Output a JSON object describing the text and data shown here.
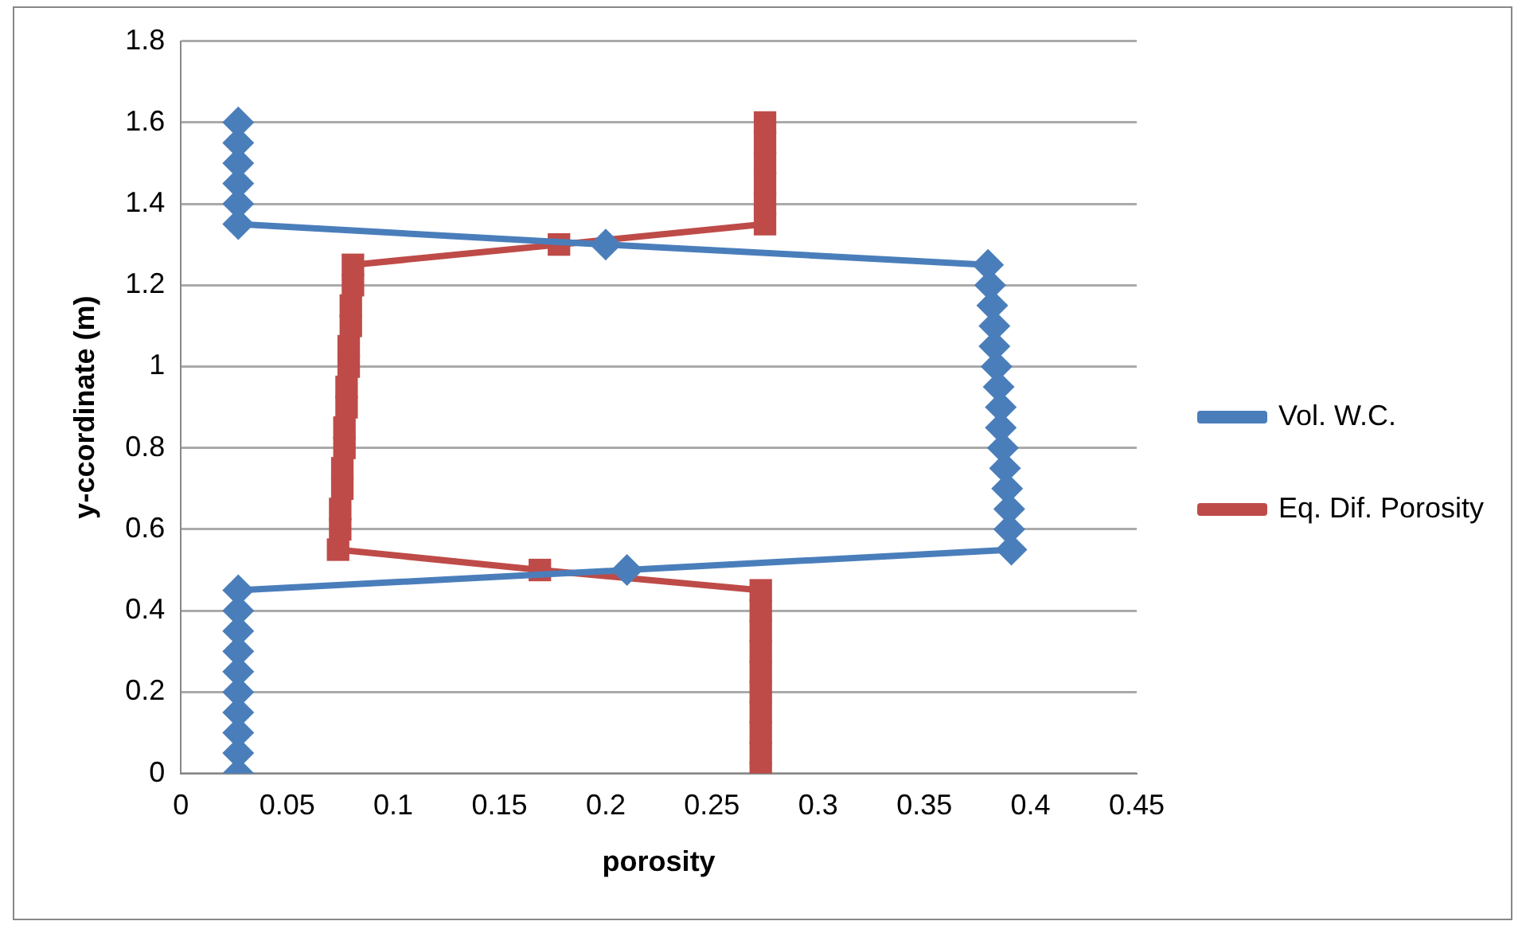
{
  "chart_data": {
    "type": "line",
    "xlabel": "porosity",
    "ylabel": "y-ccordinate (m)",
    "xlim": [
      0,
      0.45
    ],
    "xticks": [
      0,
      0.05,
      0.1,
      0.15,
      0.2,
      0.25,
      0.3,
      0.35,
      0.4,
      0.45
    ],
    "ylim": [
      0,
      1.8
    ],
    "yticks": [
      0,
      0.2,
      0.4,
      0.6,
      0.8,
      1,
      1.2,
      1.4,
      1.6,
      1.8
    ],
    "grid": "y",
    "legend": "right",
    "line_style": "solid",
    "series": [
      {
        "name": "Vol. W.C.",
        "color": "#4a7ebb",
        "marker": "diamond",
        "x": [
          0.027,
          0.027,
          0.027,
          0.027,
          0.027,
          0.027,
          0.027,
          0.027,
          0.027,
          0.027,
          0.21,
          0.391,
          0.39,
          0.39,
          0.389,
          0.388,
          0.387,
          0.386,
          0.386,
          0.385,
          0.384,
          0.383,
          0.383,
          0.382,
          0.381,
          0.38,
          0.2,
          0.027,
          0.027,
          0.027,
          0.027,
          0.027,
          0.027
        ],
        "values": [
          0,
          0.05,
          0.1,
          0.15,
          0.2,
          0.25,
          0.3,
          0.35,
          0.4,
          0.45,
          0.5,
          0.55,
          0.6,
          0.65,
          0.7,
          0.75,
          0.8,
          0.85,
          0.9,
          0.95,
          1,
          1.05,
          1.1,
          1.15,
          1.2,
          1.25,
          1.3,
          1.35,
          1.4,
          1.45,
          1.5,
          1.55,
          1.6
        ]
      },
      {
        "name": "Eq. Dif. Porosity",
        "color": "#be4b48",
        "marker": "square",
        "x": [
          0.273,
          0.273,
          0.273,
          0.273,
          0.273,
          0.273,
          0.273,
          0.273,
          0.273,
          0.273,
          0.169,
          0.074,
          0.075,
          0.075,
          0.076,
          0.076,
          0.077,
          0.077,
          0.078,
          0.078,
          0.079,
          0.079,
          0.08,
          0.08,
          0.081,
          0.081,
          0.178,
          0.275,
          0.275,
          0.275,
          0.275,
          0.275,
          0.275
        ],
        "values": [
          0,
          0.05,
          0.1,
          0.15,
          0.2,
          0.25,
          0.3,
          0.35,
          0.4,
          0.45,
          0.5,
          0.55,
          0.6,
          0.65,
          0.7,
          0.75,
          0.8,
          0.85,
          0.9,
          0.95,
          1,
          1.05,
          1.1,
          1.15,
          1.2,
          1.25,
          1.3,
          1.35,
          1.4,
          1.45,
          1.5,
          1.55,
          1.6
        ]
      }
    ]
  }
}
